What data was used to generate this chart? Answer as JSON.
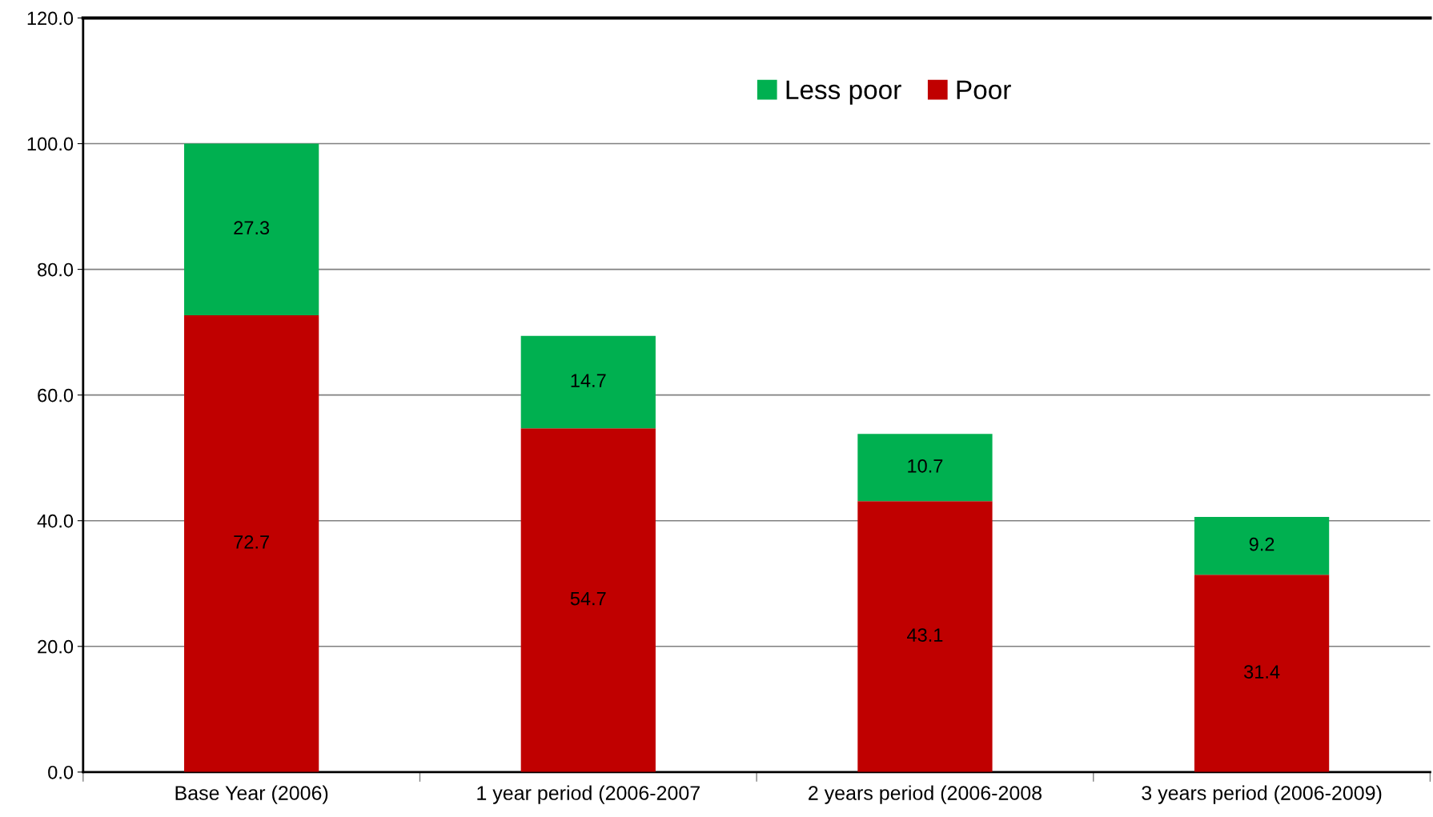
{
  "chart_data": {
    "type": "bar",
    "stacked": true,
    "categories": [
      "Base Year (2006)",
      "1 year period (2006-2007",
      "2 years period (2006-2008",
      "3 years period (2006-2009)"
    ],
    "series": [
      {
        "name": "Poor",
        "color": "#c00000",
        "values": [
          72.7,
          54.7,
          43.1,
          31.4
        ]
      },
      {
        "name": "Less poor",
        "color": "#00b050",
        "values": [
          27.3,
          14.7,
          10.7,
          9.2
        ]
      }
    ],
    "ylim": [
      0,
      120
    ],
    "yticks": [
      {
        "value": 0,
        "label": "0.0"
      },
      {
        "value": 20,
        "label": "20.0"
      },
      {
        "value": 40,
        "label": "40.0"
      },
      {
        "value": 60,
        "label": "60.0"
      },
      {
        "value": 80,
        "label": "80.0"
      },
      {
        "value": 100,
        "label": "100.0"
      },
      {
        "value": 120,
        "label": "120.0"
      }
    ],
    "grid": "y",
    "legend": "top",
    "data_labels": true
  }
}
